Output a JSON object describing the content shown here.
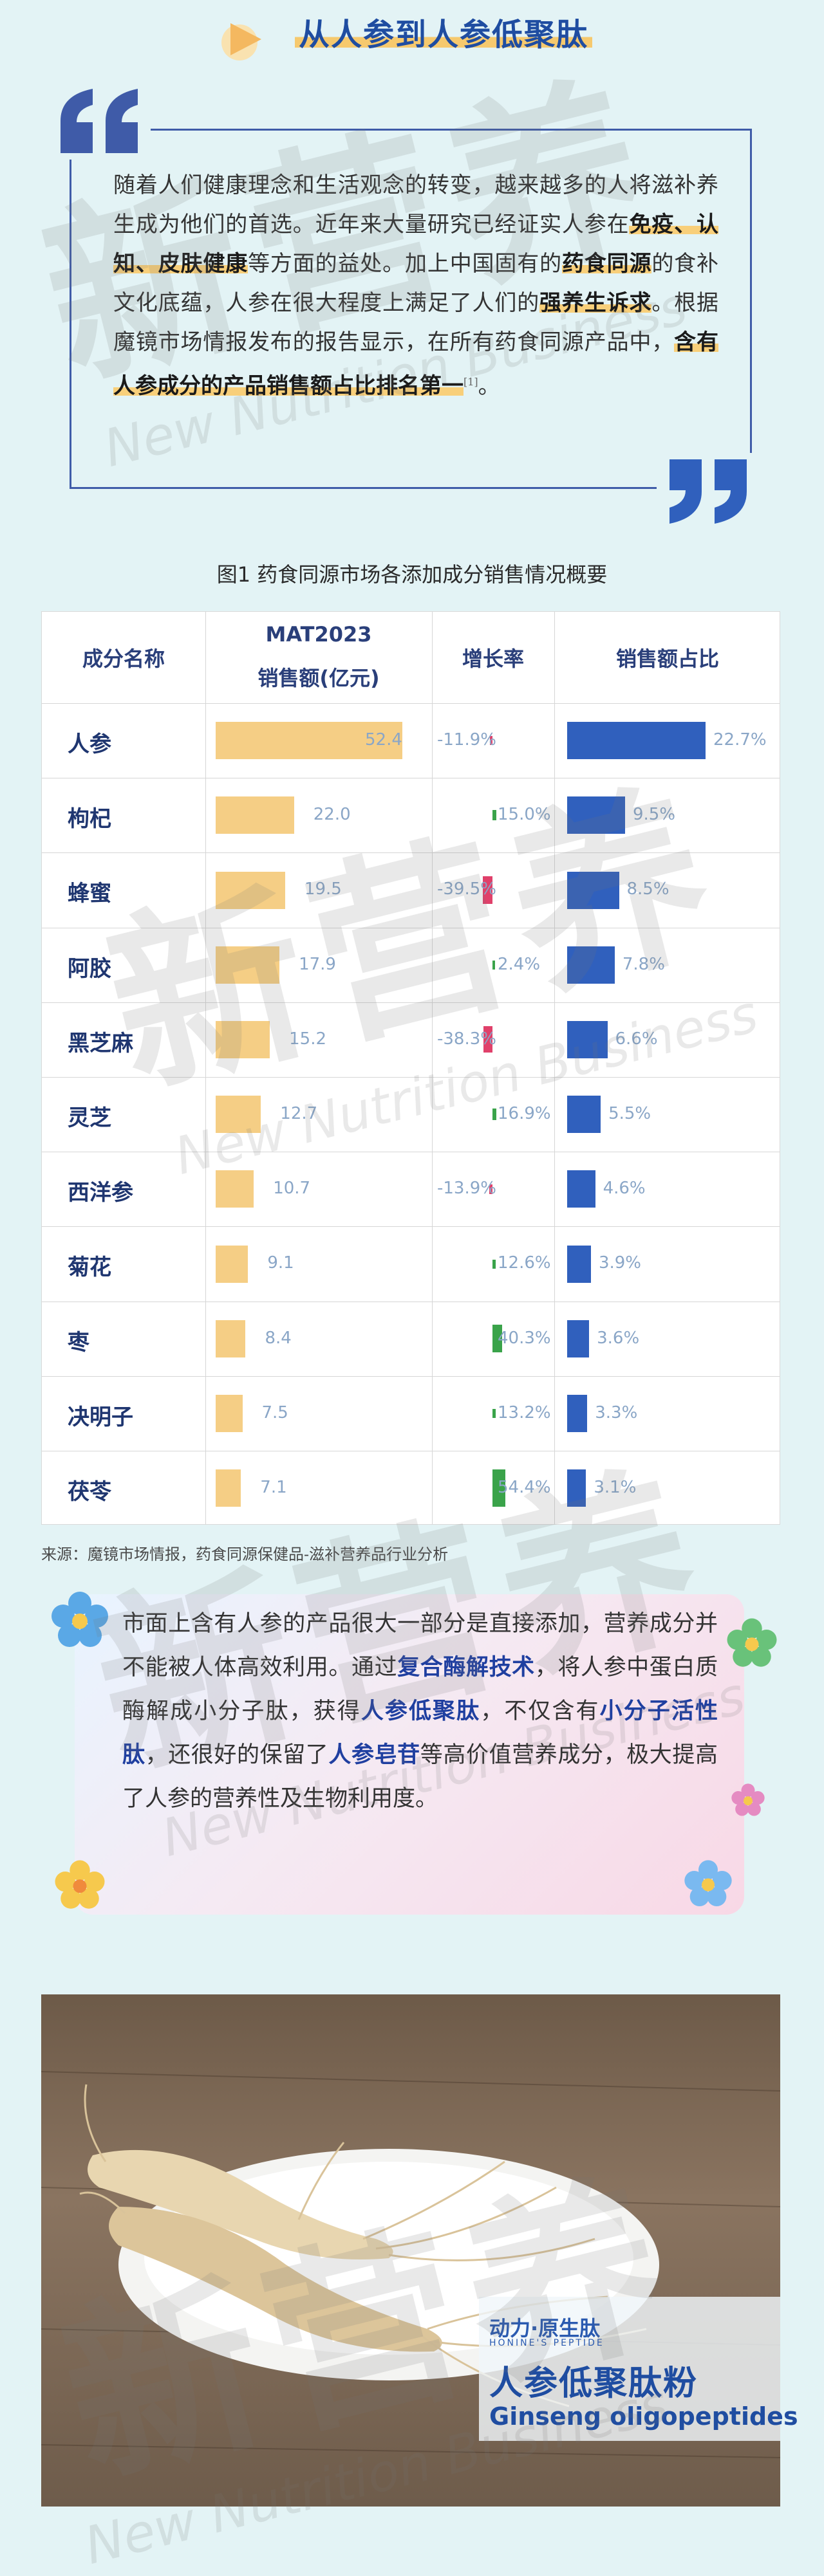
{
  "header": {
    "title": "从人参到人参低聚肽"
  },
  "intro": {
    "p1": "随着人们健康理念和生活观念的转变，越来越多的人将滋补养生成为他们的首选。近年来大量研究已经证实人参在",
    "h1": "免疫、认知、皮肤健康",
    "p2": "等方面的益处。加上中国固有的",
    "h2": "药食同源",
    "p3": "的食补文化底蕴，人参在很大程度上满足了人们的",
    "h3": "强养生诉求",
    "p4": "。根据魔镜市场情报发布的报告显示，在所有药食同源产品中，",
    "h4": "含有人参成分的产品销售额占比排名第一",
    "ref": "[1]",
    "p5": "。"
  },
  "figure": {
    "title": "图1 药食同源市场各添加成分销售情况概要"
  },
  "table": {
    "headers": {
      "name": "成分名称",
      "sales_line1": "MAT2023",
      "sales_line2": "销售额(亿元)",
      "growth": "增长率",
      "share": "销售额占比"
    },
    "colors": {
      "sales": "#f5ce85",
      "growth_neg": "#e0406a",
      "growth_pos": "#3aa34a",
      "share": "#3060bd"
    }
  },
  "chart_data": {
    "type": "table",
    "columns": [
      "成分名称",
      "MAT2023 销售额(亿元)",
      "增长率",
      "销售额占比"
    ],
    "rows": [
      {
        "name": "人参",
        "sales": 52.4,
        "sales_label": "52.4",
        "growth": -11.9,
        "growth_label": "-11.9%",
        "share": 22.7,
        "share_label": "22.7%"
      },
      {
        "name": "枸杞",
        "sales": 22.0,
        "sales_label": "22.0",
        "growth": 15.0,
        "growth_label": "15.0%",
        "share": 9.5,
        "share_label": "9.5%"
      },
      {
        "name": "蜂蜜",
        "sales": 19.5,
        "sales_label": "19.5",
        "growth": -39.5,
        "growth_label": "-39.5%",
        "share": 8.5,
        "share_label": "8.5%"
      },
      {
        "name": "阿胶",
        "sales": 17.9,
        "sales_label": "17.9",
        "growth": 2.4,
        "growth_label": "2.4%",
        "share": 7.8,
        "share_label": "7.8%"
      },
      {
        "name": "黑芝麻",
        "sales": 15.2,
        "sales_label": "15.2",
        "growth": -38.3,
        "growth_label": "-38.3%",
        "share": 6.6,
        "share_label": "6.6%"
      },
      {
        "name": "灵芝",
        "sales": 12.7,
        "sales_label": "12.7",
        "growth": 16.9,
        "growth_label": "16.9%",
        "share": 5.5,
        "share_label": "5.5%"
      },
      {
        "name": "西洋参",
        "sales": 10.7,
        "sales_label": "10.7",
        "growth": -13.9,
        "growth_label": "-13.9%",
        "share": 4.6,
        "share_label": "4.6%"
      },
      {
        "name": "菊花",
        "sales": 9.1,
        "sales_label": "9.1",
        "growth": 12.6,
        "growth_label": "12.6%",
        "share": 3.9,
        "share_label": "3.9%"
      },
      {
        "name": "枣",
        "sales": 8.4,
        "sales_label": "8.4",
        "growth": 40.3,
        "growth_label": "40.3%",
        "share": 3.6,
        "share_label": "3.6%"
      },
      {
        "name": "决明子",
        "sales": 7.5,
        "sales_label": "7.5",
        "growth": 13.2,
        "growth_label": "13.2%",
        "share": 3.3,
        "share_label": "3.3%"
      },
      {
        "name": "茯苓",
        "sales": 7.1,
        "sales_label": "7.1",
        "growth": 54.4,
        "growth_label": "54.4%",
        "share": 3.1,
        "share_label": "3.1%"
      }
    ]
  },
  "source": "来源：魔镜市场情报，药食同源保健品-滋补营养品行业分析",
  "info": {
    "p1": "市面上含有人参的产品很大一部分是直接添加，营养成分并不能被人体高效利用。通过",
    "h1": "复合酶解技术",
    "p2": "，将人参中蛋白质酶解成小分子肽，获得",
    "h2": "人参低聚肽",
    "p3": "，不仅含有",
    "h3": "小分子活性肽",
    "p4": "，还很好的保留了",
    "h4": "人参皂苷",
    "p5": "等高价值营养成分，极大提高了人参的营养性及生物利用度。"
  },
  "product": {
    "brand": "动力·原生肽",
    "brand_sub": "HONINE'S PEPTIDE",
    "name_cn": "人参低聚肽粉",
    "name_en": "Ginseng oligopeptides"
  },
  "watermark": {
    "cn": "新营养",
    "en": "New Nutrition Business"
  }
}
